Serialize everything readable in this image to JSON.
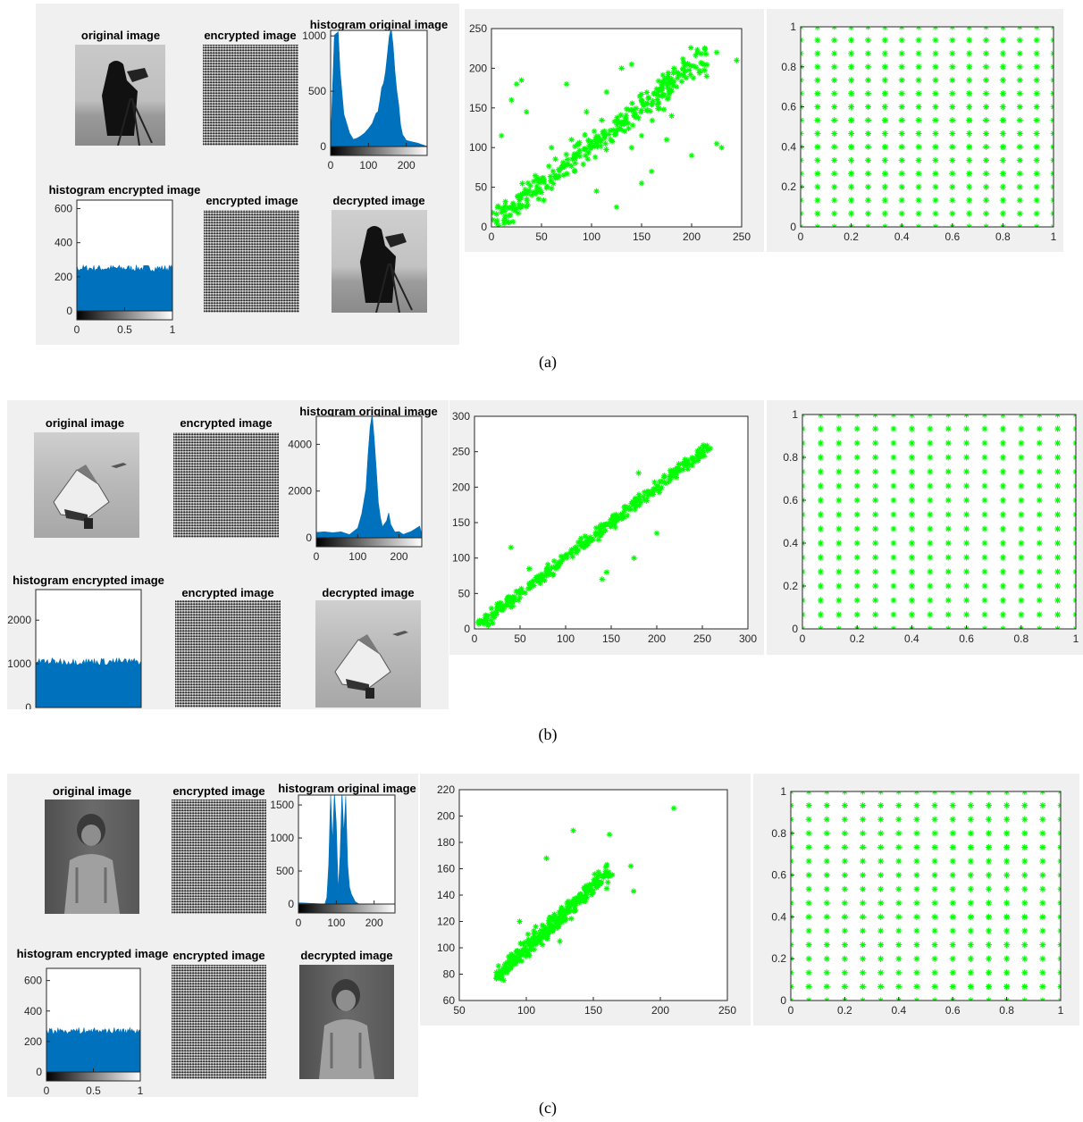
{
  "figures": [
    {
      "caption": "(a)",
      "titles": {
        "original": "original image",
        "encrypted_top": "encrypted image",
        "hist_original": "histogram original image",
        "hist_encrypted": "histogram encrypted image",
        "encrypted_bottom": "encrypted image",
        "decrypted": "decrypted image"
      }
    },
    {
      "caption": "(b)",
      "titles": {
        "original": "original image",
        "encrypted_top": "encrypted image",
        "hist_original": "histogram original image",
        "hist_encrypted": "histogram encrypted image",
        "encrypted_bottom": "encrypted image",
        "decrypted": "decrypted image"
      }
    },
    {
      "caption": "(c)",
      "titles": {
        "original": "original image",
        "encrypted_top": "encrypted image",
        "hist_original": "histogram original image",
        "hist_encrypted": "histogram encrypted image",
        "encrypted_bottom": "encrypted image",
        "decrypted": "decrypted image"
      }
    }
  ],
  "colors": {
    "scatter_marker": "#00ff00",
    "histogram_bar": "#0072bd",
    "panel_bg": "#f0f0f0"
  },
  "chart_data": [
    {
      "id": "a_hist_original",
      "type": "area",
      "xlim": [
        0,
        255
      ],
      "ylim": [
        0,
        1050
      ],
      "xticks": [
        0,
        100,
        200
      ],
      "yticks": [
        0,
        500,
        1000
      ],
      "x": [
        0,
        10,
        20,
        25,
        35,
        50,
        60,
        70,
        80,
        90,
        100,
        110,
        120,
        125,
        130,
        135,
        140,
        145,
        150,
        155,
        160,
        165,
        170,
        175,
        180,
        185,
        190,
        200,
        210,
        230,
        255
      ],
      "y": [
        60,
        980,
        1050,
        700,
        280,
        120,
        75,
        60,
        80,
        120,
        150,
        200,
        280,
        330,
        420,
        520,
        560,
        700,
        820,
        1000,
        1040,
        900,
        700,
        500,
        350,
        180,
        100,
        50,
        20,
        5,
        0
      ]
    },
    {
      "id": "a_hist_encrypted",
      "type": "area",
      "xlim": [
        0,
        1
      ],
      "ylim": [
        0,
        650
      ],
      "xticks": [
        0,
        0.5,
        1
      ],
      "yticks": [
        0,
        200,
        400,
        600
      ],
      "level": 250
    },
    {
      "id": "a_scatter",
      "type": "scatter",
      "xlim": [
        0,
        250
      ],
      "ylim": [
        0,
        250
      ],
      "xticks": [
        0,
        50,
        100,
        150,
        200,
        250
      ],
      "yticks": [
        0,
        50,
        100,
        150,
        200,
        250
      ],
      "outliers": [
        [
          25,
          180
        ],
        [
          30,
          185
        ],
        [
          20,
          160
        ],
        [
          35,
          145
        ],
        [
          10,
          115
        ],
        [
          75,
          180
        ],
        [
          95,
          145
        ],
        [
          60,
          100
        ],
        [
          80,
          110
        ],
        [
          105,
          45
        ],
        [
          125,
          25
        ],
        [
          150,
          55
        ],
        [
          160,
          70
        ],
        [
          175,
          110
        ],
        [
          200,
          90
        ],
        [
          225,
          105
        ],
        [
          230,
          100
        ],
        [
          215,
          190
        ],
        [
          225,
          220
        ],
        [
          245,
          210
        ],
        [
          150,
          115
        ],
        [
          140,
          100
        ],
        [
          180,
          140
        ],
        [
          170,
          180
        ],
        [
          115,
          170
        ],
        [
          130,
          200
        ],
        [
          140,
          205
        ]
      ],
      "trend": {
        "from": 5,
        "to": 215,
        "slope": 0.98,
        "intercept": 5,
        "spread": 14
      }
    },
    {
      "id": "a_grid",
      "type": "scatter",
      "xlim": [
        0,
        1
      ],
      "ylim": [
        0,
        1
      ],
      "xticks": [
        0,
        0.2,
        0.4,
        0.6,
        0.8,
        1
      ],
      "yticks": [
        0,
        0.2,
        0.4,
        0.6,
        0.8,
        1
      ],
      "n": 16
    },
    {
      "id": "b_hist_original",
      "type": "area",
      "xlim": [
        0,
        255
      ],
      "ylim": [
        0,
        5200
      ],
      "xticks": [
        0,
        100,
        200
      ],
      "yticks": [
        0,
        2000,
        4000
      ],
      "x": [
        0,
        20,
        40,
        60,
        80,
        100,
        110,
        120,
        125,
        130,
        135,
        140,
        145,
        150,
        155,
        160,
        170,
        175,
        180,
        190,
        200,
        210,
        230,
        250,
        255
      ],
      "y": [
        150,
        150,
        160,
        200,
        250,
        400,
        900,
        2000,
        3500,
        4800,
        5200,
        4300,
        3000,
        1500,
        800,
        450,
        700,
        1200,
        600,
        300,
        250,
        220,
        250,
        350,
        200
      ]
    },
    {
      "id": "b_hist_encrypted",
      "type": "area",
      "xlim": [
        0,
        1
      ],
      "ylim": [
        0,
        2700
      ],
      "yticks": [
        0,
        1000,
        2000
      ],
      "level": 1050
    },
    {
      "id": "b_scatter",
      "type": "scatter",
      "xlim": [
        0,
        300
      ],
      "ylim": [
        0,
        300
      ],
      "xticks": [
        0,
        50,
        100,
        150,
        200,
        250,
        300
      ],
      "yticks": [
        0,
        50,
        100,
        150,
        200,
        250,
        300
      ],
      "outliers": [
        [
          40,
          115
        ],
        [
          60,
          85
        ],
        [
          145,
          80
        ],
        [
          140,
          70
        ],
        [
          175,
          100
        ],
        [
          200,
          135
        ],
        [
          180,
          220
        ],
        [
          25,
          35
        ],
        [
          15,
          5
        ],
        [
          5,
          10
        ],
        [
          20,
          8
        ]
      ],
      "trend": {
        "from": 5,
        "to": 255,
        "slope": 1.0,
        "intercept": 0,
        "spread": 7
      }
    },
    {
      "id": "b_grid",
      "type": "scatter",
      "xlim": [
        0,
        1
      ],
      "ylim": [
        0,
        1
      ],
      "xticks": [
        0,
        0.2,
        0.4,
        0.6,
        0.8,
        1
      ],
      "yticks": [
        0,
        0.2,
        0.4,
        0.6,
        0.8,
        1
      ],
      "n": 16
    },
    {
      "id": "c_hist_original",
      "type": "area",
      "xlim": [
        0,
        255
      ],
      "ylim": [
        0,
        1650
      ],
      "xticks": [
        0,
        100,
        200
      ],
      "yticks": [
        0,
        500,
        1000,
        1500
      ],
      "x": [
        0,
        70,
        75,
        80,
        85,
        90,
        95,
        100,
        105,
        110,
        115,
        120,
        125,
        130,
        135,
        140,
        150,
        160,
        255
      ],
      "y": [
        0,
        0,
        100,
        600,
        1650,
        900,
        1650,
        1200,
        200,
        700,
        1650,
        1100,
        1650,
        600,
        300,
        100,
        30,
        0,
        0
      ]
    },
    {
      "id": "c_hist_encrypted",
      "type": "area",
      "xlim": [
        0,
        1
      ],
      "ylim": [
        0,
        680
      ],
      "xticks": [
        0,
        0.5,
        1
      ],
      "yticks": [
        0,
        200,
        400,
        600
      ],
      "level": 270
    },
    {
      "id": "c_scatter",
      "type": "scatter",
      "xlim": [
        50,
        250
      ],
      "ylim": [
        60,
        220
      ],
      "xticks": [
        50,
        100,
        150,
        200,
        250
      ],
      "yticks": [
        60,
        80,
        100,
        120,
        140,
        160,
        180,
        200,
        220
      ],
      "outliers": [
        [
          210,
          206
        ],
        [
          135,
          189
        ],
        [
          115,
          168
        ],
        [
          162,
          186
        ],
        [
          178,
          162
        ],
        [
          180,
          143
        ],
        [
          140,
          140
        ],
        [
          160,
          145
        ],
        [
          125,
          105
        ],
        [
          95,
          120
        ]
      ],
      "trend": {
        "from": 78,
        "to": 162,
        "slope": 0.95,
        "intercept": 4,
        "spread": 5
      }
    },
    {
      "id": "c_grid",
      "type": "scatter",
      "xlim": [
        0,
        1
      ],
      "ylim": [
        0,
        1
      ],
      "xticks": [
        0,
        0.2,
        0.4,
        0.6,
        0.8,
        1
      ],
      "yticks": [
        0,
        0.2,
        0.4,
        0.6,
        0.8,
        1
      ],
      "n": 16
    }
  ]
}
